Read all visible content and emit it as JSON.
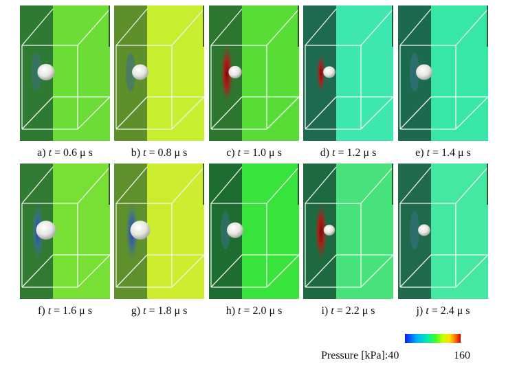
{
  "panels": [
    {
      "label": "a)",
      "t_label": "t",
      "eq": " = 0.6  μ s",
      "mid": "#6cdc36",
      "left": "#2f7a32",
      "right_bg": "#6cdc36",
      "bubble": "sphere",
      "size": 1.0,
      "band": "none"
    },
    {
      "label": "b)",
      "t_label": "t",
      "eq": " = 0.8  μ s",
      "mid": "#c8ee30",
      "left": "#5e8f2a",
      "right_bg": "#c8ee30",
      "bubble": "sphere",
      "size": 0.95,
      "band": "none"
    },
    {
      "label": "c)",
      "t_label": "t",
      "eq": " = 1.0  μ s",
      "mid": "#58dd36",
      "left": "#2c7630",
      "right_bg": "#58dd36",
      "bubble": "small",
      "size": 0.7,
      "band": "red"
    },
    {
      "label": "d)",
      "t_label": "t",
      "eq": " = 1.2  μ s",
      "mid": "#3ee6b0",
      "left": "#1d6a50",
      "right_bg": "#3ee6b0",
      "bubble": "small",
      "size": 0.65,
      "band": "red-thin"
    },
    {
      "label": "e)",
      "t_label": "t",
      "eq": " = 1.4  μ s",
      "mid": "#38e6a6",
      "left": "#1c6a4e",
      "right_bg": "#38e6a6",
      "bubble": "sphere",
      "size": 0.95,
      "band": "none"
    },
    {
      "label": "f)",
      "t_label": "t",
      "eq": " = 1.6  μ s",
      "mid": "#78e034",
      "left": "#317a32",
      "right_bg": "#78e034",
      "bubble": "sphere",
      "size": 1.15,
      "band": "blue"
    },
    {
      "label": "g)",
      "t_label": "t",
      "eq": " = 1.8  μ s",
      "mid": "#cdee2e",
      "left": "#60902c",
      "right_bg": "#cdee2e",
      "bubble": "sphere",
      "size": 1.15,
      "band": "blue"
    },
    {
      "label": "h)",
      "t_label": "t",
      "eq": " = 2.0  μ s",
      "mid": "#38e33c",
      "left": "#1e6d30",
      "right_bg": "#38e33c",
      "bubble": "sphere",
      "size": 0.95,
      "band": "none"
    },
    {
      "label": "i)",
      "t_label": "t",
      "eq": " = 2.2  μ s",
      "mid": "#48e27a",
      "left": "#1d6a40",
      "right_bg": "#48e27a",
      "bubble": "small",
      "size": 0.6,
      "band": "red"
    },
    {
      "label": "j)",
      "t_label": "t",
      "eq": " = 2.4  μ s",
      "mid": "#44e8a0",
      "left": "#1e6a4a",
      "right_bg": "#44e8a0",
      "bubble": "small",
      "size": 0.65,
      "band": "none"
    }
  ],
  "legend": {
    "title": "Pressure [kPa]:",
    "min": "40",
    "max": "160"
  }
}
